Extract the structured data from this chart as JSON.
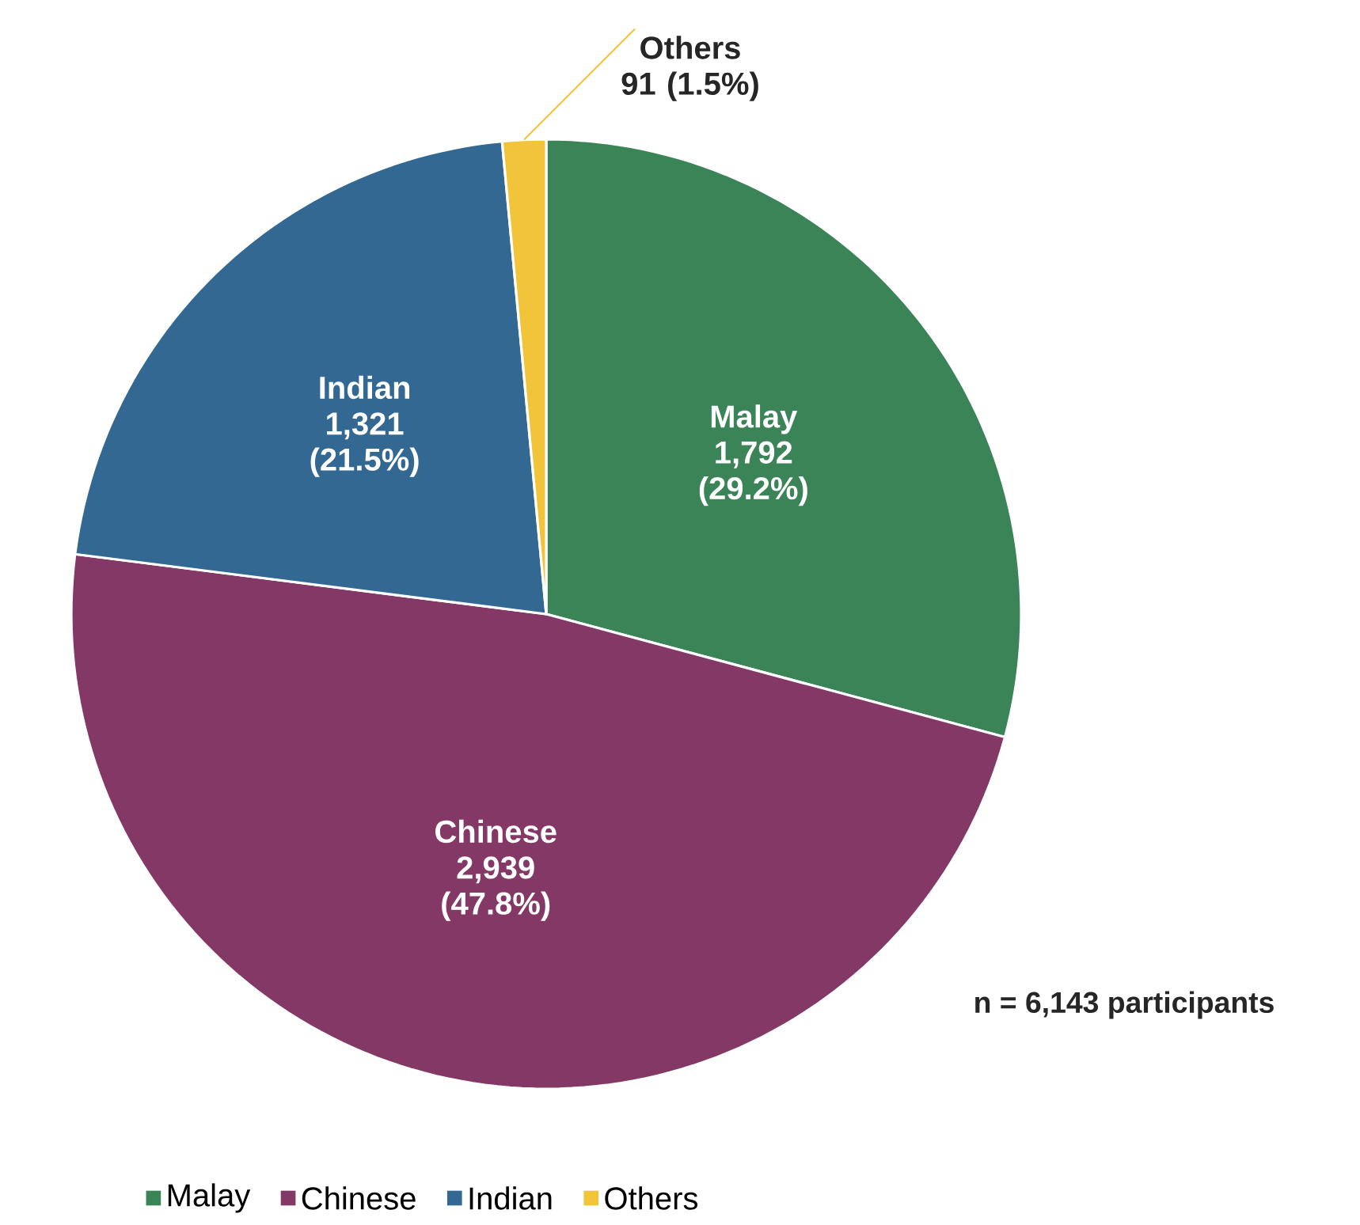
{
  "chart_data": {
    "type": "pie",
    "categories": [
      "Malay",
      "Chinese",
      "Indian",
      "Others"
    ],
    "values": [
      1792,
      2939,
      1321,
      91
    ],
    "colors": [
      "#3a8458",
      "#843866",
      "#336892",
      "#f2c43a"
    ],
    "value_labels": [
      "1,792 (29.2%)",
      "2,939 (47.8%)",
      "1,321 (21.5%)",
      "91 (1.5%)"
    ],
    "annotations": [
      "n = 6,143 participants"
    ],
    "legend": "bottom"
  }
}
